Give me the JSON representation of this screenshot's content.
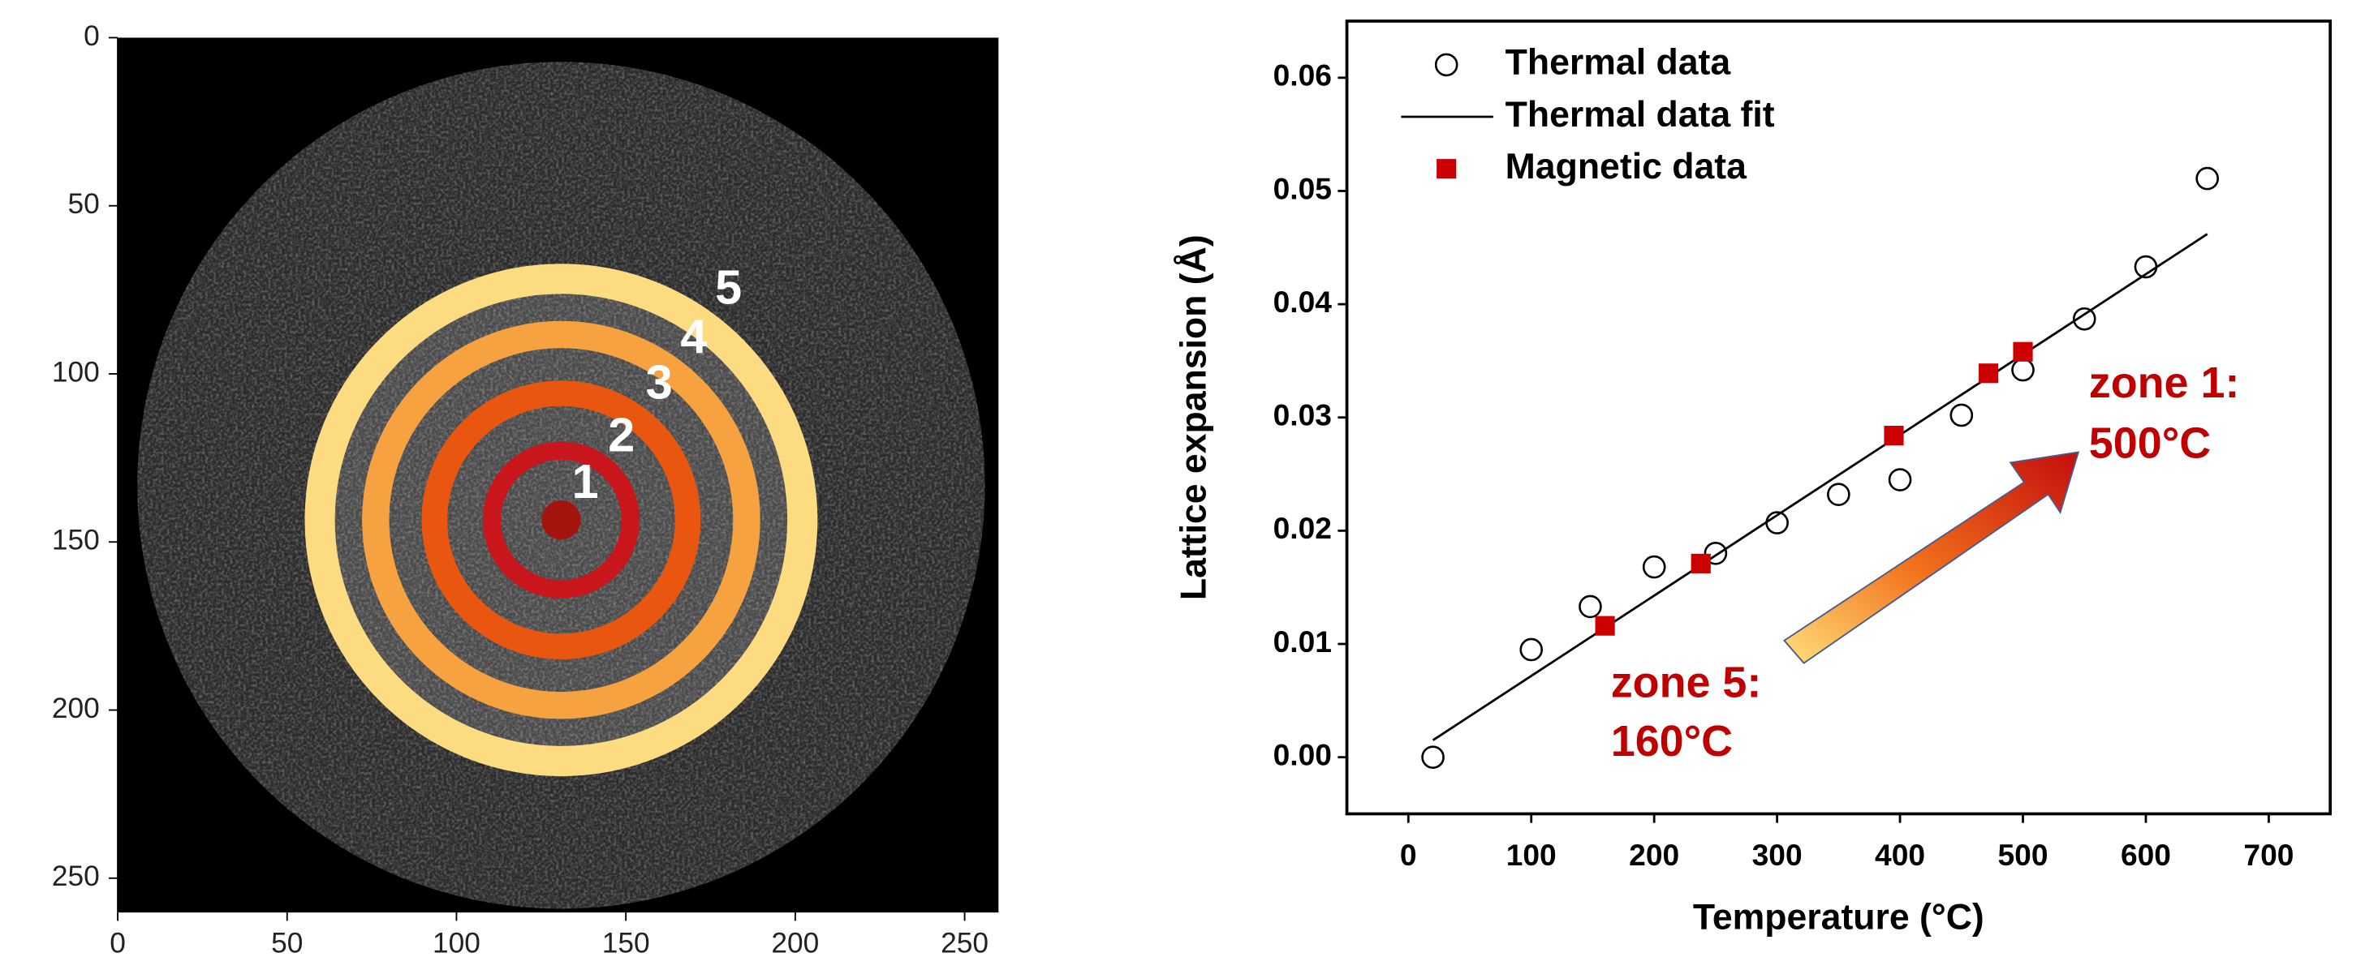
{
  "chart_data": [
    {
      "type": "image",
      "xlim": [
        0,
        260
      ],
      "ylim": [
        260,
        0
      ],
      "xticks": [
        0,
        50,
        100,
        150,
        200,
        250
      ],
      "yticks": [
        0,
        50,
        100,
        150,
        200,
        250
      ],
      "annotations": [
        "1",
        "2",
        "3",
        "4",
        "5"
      ]
    },
    {
      "type": "scatter",
      "xlabel": "Temperature (°C)",
      "ylabel": "Lattice expansion (Å)",
      "xlim": [
        -50,
        750
      ],
      "ylim": [
        -0.005,
        0.065
      ],
      "xticks": [
        0,
        100,
        200,
        300,
        400,
        500,
        600,
        700
      ],
      "yticks": [
        {
          "value": 0,
          "label": "0.00"
        },
        {
          "value": 0.01,
          "label": "0.01"
        },
        {
          "value": 0.02,
          "label": "0.02"
        },
        {
          "value": 0.03,
          "label": "0.03"
        },
        {
          "value": 0.04,
          "label": "0.04"
        },
        {
          "value": 0.05,
          "label": "0.05"
        },
        {
          "value": 0.06,
          "label": "0.06"
        }
      ],
      "series": [
        {
          "name": "Thermal data",
          "marker": "open-circle",
          "color": "#000000",
          "x": [
            20,
            100,
            148,
            200,
            250,
            300,
            350,
            400,
            450,
            500,
            550,
            600,
            650
          ],
          "values": [
            0.0,
            0.0095,
            0.0133,
            0.0168,
            0.018,
            0.0207,
            0.0232,
            0.0245,
            0.0302,
            0.0342,
            0.0387,
            0.0433,
            0.0511
          ]
        },
        {
          "name": "Thermal data fit",
          "marker": "line",
          "color": "#000000",
          "x": [
            20,
            650
          ],
          "values": [
            0.0015,
            0.0462
          ]
        },
        {
          "name": "Magnetic data",
          "marker": "square",
          "color": "#cc0000",
          "x": [
            160,
            238,
            395,
            472,
            500
          ],
          "values": [
            0.0116,
            0.0171,
            0.0284,
            0.0339,
            0.0358
          ]
        }
      ],
      "annotations": [
        "zone 1:",
        "500°C",
        "zone 5:",
        "160°C"
      ]
    }
  ]
}
